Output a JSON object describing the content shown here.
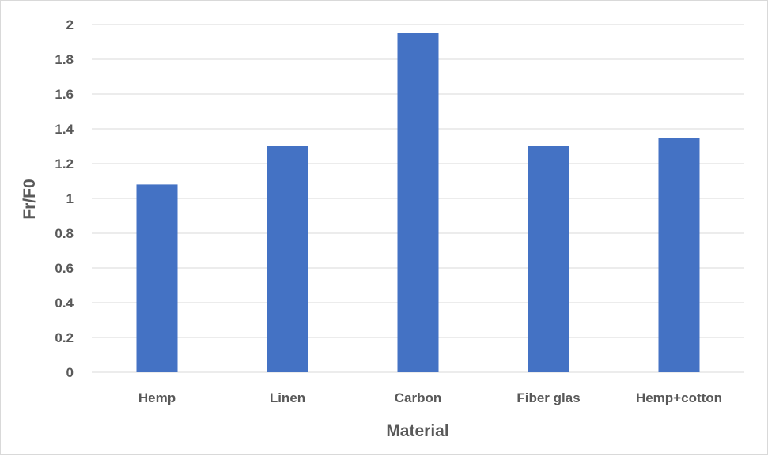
{
  "chart_data": {
    "type": "bar",
    "title": "",
    "xlabel": "Material",
    "ylabel": "Fr/F0",
    "categories": [
      "Hemp",
      "Linen",
      "Carbon",
      "Fiber glas",
      "Hemp+cotton"
    ],
    "values": [
      1.08,
      1.3,
      1.95,
      1.3,
      1.35
    ],
    "ylim": [
      0,
      2
    ],
    "yticks": [
      "0",
      "0.2",
      "0.4",
      "0.6",
      "0.8",
      "1",
      "1.2",
      "1.4",
      "1.6",
      "1.8",
      "2"
    ],
    "grid": true,
    "legend": "none",
    "bar_color": "#4472c4",
    "grid_color": "#d9d9d9"
  }
}
